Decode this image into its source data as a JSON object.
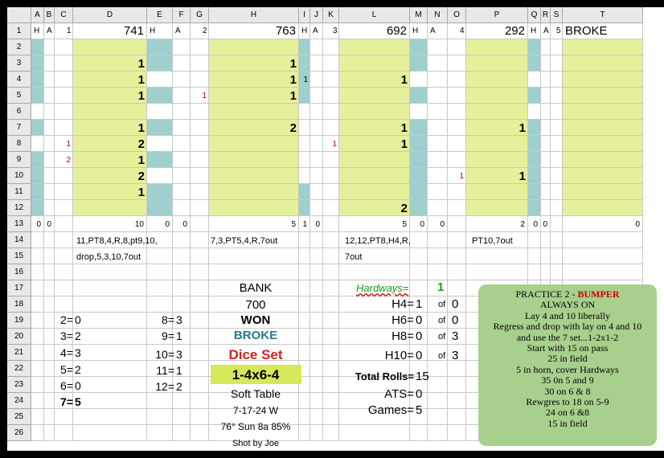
{
  "columns": [
    "A",
    "B",
    "C",
    "D",
    "E",
    "F",
    "G",
    "H",
    "I",
    "J",
    "K",
    "L",
    "M",
    "N",
    "O",
    "P",
    "Q",
    "R",
    "S",
    "T"
  ],
  "rows": [
    "1",
    "2",
    "3",
    "4",
    "5",
    "6",
    "7",
    "8",
    "9",
    "10",
    "11",
    "12",
    "13",
    "14",
    "15",
    "16",
    "17",
    "18",
    "19",
    "20",
    "21",
    "22",
    "23",
    "24",
    "25",
    "26"
  ],
  "colors": {
    "yellow": "#e6f09a",
    "teal": "#9fcfcf",
    "note_bg": "#a8d08d",
    "bumper_red": "#cc0000",
    "dice_red": "#d42020",
    "broke_teal": "#2a7a8a",
    "hardway_green": "#1a9a1a",
    "lime": "#d4e85a"
  },
  "row1": {
    "blocks": [
      {
        "h": "H",
        "a": "A",
        "num": "1",
        "score": "741"
      },
      {
        "h": "H",
        "a": "A",
        "num": "2",
        "score": "763"
      },
      {
        "h": "H",
        "a": "A",
        "num": "3",
        "score": "692"
      },
      {
        "h": "H",
        "a": "A",
        "num": "4",
        "score": "292"
      },
      {
        "h": "H",
        "a": "A",
        "num": "5",
        "score": "BROKE"
      }
    ]
  },
  "block_values": {
    "D": [
      "",
      "1",
      "1",
      "1",
      "",
      "1",
      "2",
      "1",
      "2",
      "1",
      ""
    ],
    "H": [
      "",
      "1",
      "1",
      "1",
      "",
      "2",
      "",
      "",
      "",
      "",
      ""
    ],
    "L": [
      "",
      "",
      "1",
      "",
      "",
      "1",
      "1",
      "",
      "",
      "",
      "2"
    ],
    "P": [
      "",
      "",
      "",
      "",
      "",
      "1",
      "",
      "",
      "1",
      "",
      ""
    ]
  },
  "small_marks": {
    "C8": "1",
    "C9": "2",
    "G5": "1",
    "I4": "1",
    "K8": "1",
    "O10": "1"
  },
  "row13": {
    "A": "0",
    "B": "0",
    "D": "10",
    "E": "0",
    "F": "0",
    "H": "5",
    "I": "1",
    "J": "0",
    "L": "5",
    "M": "0",
    "N": "0",
    "P": "2",
    "Q": "0",
    "R": "0",
    "T": "0"
  },
  "sequences": {
    "d14": "11,PT8,4,R,8,pt9,10,",
    "d15": "drop,5,3,10,7out",
    "h14": "7,3,PT5,4,R,7out",
    "l14": "12,12,PT8,H4,R,",
    "l15": "7out",
    "p14": "PT10,7out"
  },
  "counts_left": [
    {
      "label": "2=",
      "val": "0"
    },
    {
      "label": "3=",
      "val": "2"
    },
    {
      "label": "4=",
      "val": "3"
    },
    {
      "label": "5=",
      "val": "2"
    },
    {
      "label": "6=",
      "val": "0"
    },
    {
      "label": "7=",
      "val": "5"
    }
  ],
  "counts_right": [
    {
      "label": "8=",
      "val": "3"
    },
    {
      "label": "9=",
      "val": "1"
    },
    {
      "label": "10=",
      "val": "3"
    },
    {
      "label": "11=",
      "val": "1"
    },
    {
      "label": "12=",
      "val": "2"
    }
  ],
  "center": {
    "bank": "BANK",
    "bank_val": "700",
    "won": "WON",
    "broke": "BROKE",
    "dice_set": "Dice Set",
    "dice_val": "1-4x6-4",
    "table": "Soft Table",
    "date": "7-17-24 W",
    "weather": "76° Sun 8a 85%",
    "shot": "Shot by Joe"
  },
  "hardways": {
    "title": "Hardways=",
    "count": "1",
    "rows": [
      {
        "label": "H4=",
        "val": "1",
        "of": "of",
        "tot": "0"
      },
      {
        "label": "H6=",
        "val": "0",
        "of": "of",
        "tot": "0"
      },
      {
        "label": "H8=",
        "val": "0",
        "of": "of",
        "tot": "3"
      },
      {
        "label": "H10=",
        "val": "0",
        "of": "of",
        "tot": "3"
      }
    ],
    "total_label": "Total Rolls=",
    "total": "15",
    "ats_label": "ATS=",
    "ats": "0",
    "games_label": "Games=",
    "games": "5"
  },
  "note": {
    "title": "PRACTICE 2 - ",
    "title_red": "BUMPER",
    "lines": [
      "ALWAYS ON",
      "Lay 4 and 10 liberally",
      "Regress and drop with lay on 4 and 10",
      "and use the 7 set...1-2x1-2",
      "Start with 15 on pass",
      "25 in field",
      "5 in horn, cover Hardways",
      "35 0n 5 and 9",
      "30 on 6 & 8",
      "Rewgres to 18 on 5-9",
      "24 on 6 &8",
      "15 in field"
    ]
  }
}
